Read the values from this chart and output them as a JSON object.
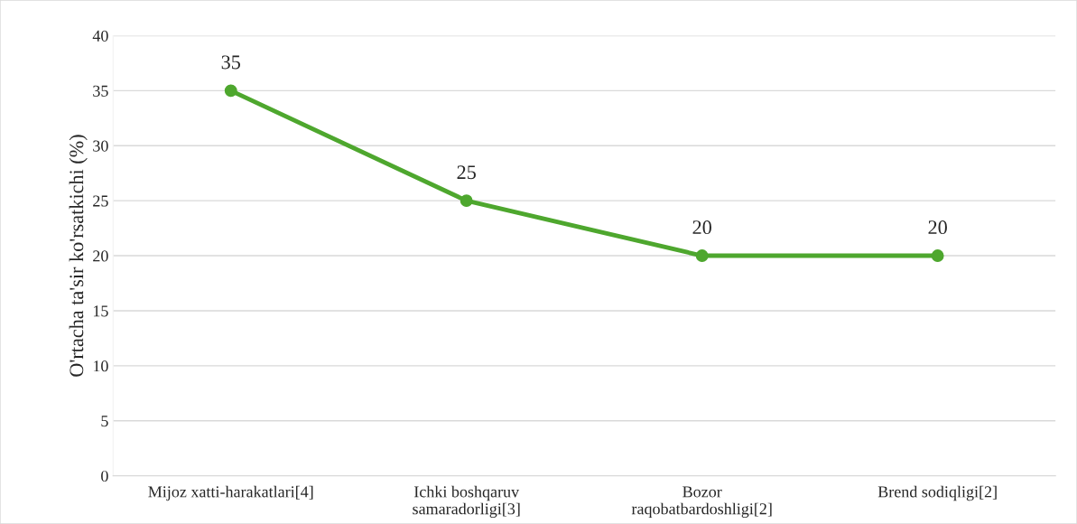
{
  "chart_data": {
    "type": "line",
    "ylabel": "O'rtacha ta'sir ko'rsatkichi (%)",
    "categories": [
      "Mijoz xatti-harakatlari[4]",
      "Ichki boshqaruv\nsamaradorligi[3]",
      "Bozor\nraqobatbardoshligi[2]",
      "Brend sodiqligi[2]"
    ],
    "series": [
      {
        "color": "#4ea72e",
        "values": [
          35,
          25,
          20,
          20
        ]
      }
    ],
    "ylim": [
      0,
      40
    ],
    "yticks": [
      0,
      5,
      10,
      15,
      20,
      25,
      30,
      35,
      40
    ],
    "grid": "y",
    "marker": "circle",
    "line_style": "solid",
    "data_labels": true,
    "legend": false
  }
}
